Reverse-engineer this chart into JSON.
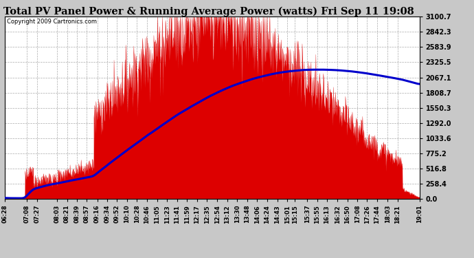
{
  "title": "Total PV Panel Power & Running Average Power (watts) Fri Sep 11 19:08",
  "copyright": "Copyright 2009 Cartronics.com",
  "background_color": "#c8c8c8",
  "plot_bg_color": "#ffffff",
  "fill_color": "#dd0000",
  "line_color": "#0000cc",
  "y_max": 3100.7,
  "y_ticks": [
    0.0,
    258.4,
    516.8,
    775.2,
    1033.6,
    1292.0,
    1550.3,
    1808.7,
    2067.1,
    2325.5,
    2583.9,
    2842.3,
    3100.7
  ],
  "x_labels": [
    "06:28",
    "07:08",
    "07:27",
    "08:03",
    "08:21",
    "08:39",
    "08:57",
    "09:16",
    "09:34",
    "09:52",
    "10:10",
    "10:28",
    "10:46",
    "11:05",
    "11:23",
    "11:41",
    "11:59",
    "12:17",
    "12:35",
    "12:54",
    "13:12",
    "13:30",
    "13:48",
    "14:06",
    "14:24",
    "14:43",
    "15:01",
    "15:15",
    "15:37",
    "15:55",
    "16:13",
    "16:32",
    "16:50",
    "17:08",
    "17:26",
    "17:44",
    "18:03",
    "18:21",
    "19:01"
  ]
}
